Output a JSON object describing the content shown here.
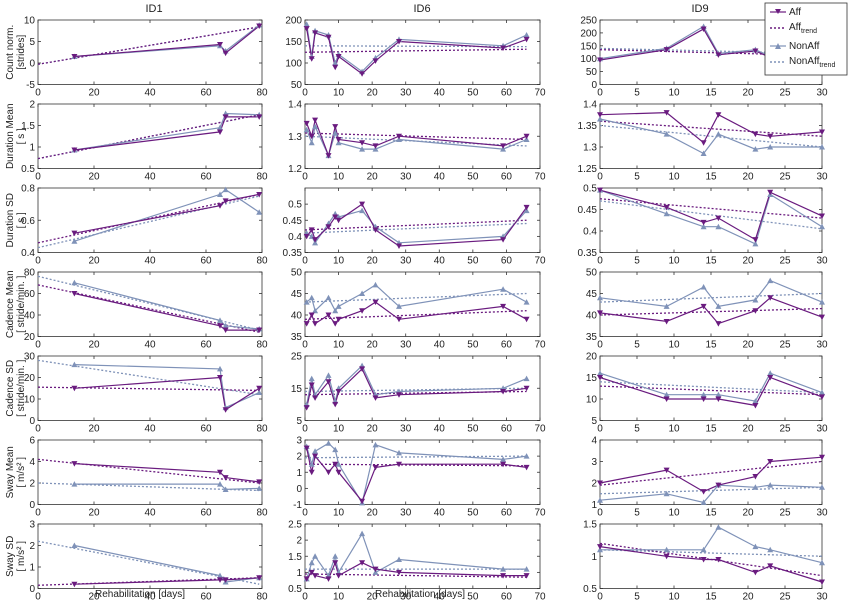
{
  "colors": {
    "aff": "#6a1b7f",
    "nonaff": "#7f92b8",
    "axis": "#333333",
    "box": "#ffffff"
  },
  "legend": {
    "aff": "Aff",
    "aff_trend_base": "Aff",
    "aff_trend_sub": "trend",
    "nonaff": "NonAff",
    "nonaff_trend_base": "NonAff",
    "nonaff_trend_sub": "trend"
  },
  "column_titles": [
    "ID1",
    "ID6",
    "ID9"
  ],
  "xlabel": "Rehabilitation [days]",
  "chart_data": {
    "type": "line",
    "columns": [
      {
        "id": "ID1",
        "xlim": [
          0,
          80
        ],
        "xticks": [
          0,
          20,
          40,
          60,
          80
        ],
        "x": [
          13,
          65,
          67,
          79
        ]
      },
      {
        "id": "ID6",
        "xlim": [
          0,
          70
        ],
        "xticks": [
          0,
          10,
          20,
          30,
          40,
          50,
          60,
          70
        ],
        "x": [
          0.5,
          2,
          3,
          7,
          9,
          10,
          17,
          21,
          28,
          59,
          66
        ]
      },
      {
        "id": "ID9",
        "xlim": [
          0,
          30
        ],
        "xticks": [
          0,
          5,
          10,
          15,
          20,
          25,
          30
        ],
        "x": [
          0,
          9,
          14,
          16,
          21,
          23,
          30
        ]
      }
    ],
    "rows": [
      {
        "ylabel1": "Count norm.",
        "ylabel2": "[strides]",
        "cells": [
          {
            "ylim": [
              -5,
              10
            ],
            "yticks": [
              -5,
              0,
              5,
              10
            ],
            "aff": [
              1.5,
              4.3,
              2.3,
              8.6
            ],
            "nonaff": [
              1.5,
              4.0,
              2.8,
              8.8
            ],
            "aff_trend": [
              -0.3,
              8.4
            ],
            "nonaff_trend": [
              -0.3,
              8.4
            ]
          },
          {
            "ylim": [
              50,
              200
            ],
            "yticks": [
              50,
              100,
              150,
              200
            ],
            "aff": [
              180,
              110,
              170,
              160,
              90,
              115,
              75,
              105,
              150,
              135,
              155
            ],
            "nonaff": [
              190,
              115,
              175,
              165,
              100,
              120,
              80,
              112,
              155,
              140,
              165
            ],
            "aff_trend": [
              125,
              132
            ],
            "nonaff_trend": [
              140,
              138
            ]
          },
          {
            "ylim": [
              0,
              250
            ],
            "yticks": [
              0,
              50,
              100,
              150,
              200,
              250
            ],
            "aff": [
              95,
              135,
              215,
              115,
              130,
              105,
              85
            ],
            "nonaff": [
              100,
              140,
              225,
              120,
              135,
              110,
              95
            ],
            "aff_trend": [
              135,
              112
            ],
            "nonaff_trend": [
              140,
              120
            ]
          }
        ]
      },
      {
        "ylabel1": "Duration Mean",
        "ylabel2": "[ s ]",
        "cells": [
          {
            "ylim": [
              0.5,
              2
            ],
            "yticks": [
              0.5,
              1,
              1.5,
              2
            ],
            "aff": [
              0.93,
              1.35,
              1.7,
              1.7
            ],
            "nonaff": [
              0.93,
              1.45,
              1.78,
              1.75
            ],
            "aff_trend": [
              0.73,
              1.75
            ],
            "nonaff_trend": [
              0.73,
              1.75
            ]
          },
          {
            "ylim": [
              1.2,
              1.4
            ],
            "yticks": [
              1.2,
              1.3,
              1.4
            ],
            "aff": [
              1.34,
              1.3,
              1.35,
              1.24,
              1.33,
              1.29,
              1.28,
              1.27,
              1.3,
              1.27,
              1.3
            ],
            "nonaff": [
              1.32,
              1.28,
              1.33,
              1.24,
              1.31,
              1.28,
              1.26,
              1.26,
              1.29,
              1.26,
              1.29
            ],
            "aff_trend": [
              1.31,
              1.29
            ],
            "nonaff_trend": [
              1.3,
              1.27
            ]
          },
          {
            "ylim": [
              1.25,
              1.4
            ],
            "yticks": [
              1.25,
              1.3,
              1.35,
              1.4
            ],
            "aff": [
              1.375,
              1.38,
              1.31,
              1.375,
              1.33,
              1.325,
              1.335
            ],
            "nonaff": [
              1.365,
              1.33,
              1.285,
              1.33,
              1.295,
              1.3,
              1.3
            ],
            "aff_trend": [
              1.36,
              1.325
            ],
            "nonaff_trend": [
              1.35,
              1.3
            ]
          }
        ]
      },
      {
        "ylabel1": "Duration SD",
        "ylabel2": "[ s ]",
        "cells": [
          {
            "ylim": [
              0.4,
              0.8
            ],
            "yticks": [
              0.4,
              0.6,
              0.8
            ],
            "aff": [
              0.52,
              0.69,
              0.72,
              0.76
            ],
            "nonaff": [
              0.47,
              0.76,
              0.79,
              0.65
            ],
            "aff_trend": [
              0.46,
              0.76
            ],
            "nonaff_trend": [
              0.43,
              0.75
            ]
          },
          {
            "ylim": [
              0.35,
              0.55
            ],
            "yticks": [
              0.35,
              0.4,
              0.45,
              0.5
            ],
            "aff": [
              0.4,
              0.42,
              0.39,
              0.43,
              0.46,
              0.45,
              0.5,
              0.42,
              0.37,
              0.39,
              0.49
            ],
            "nonaff": [
              0.41,
              0.4,
              0.38,
              0.44,
              0.47,
              0.46,
              0.48,
              0.43,
              0.38,
              0.4,
              0.48
            ],
            "aff_trend": [
              0.42,
              0.45
            ],
            "nonaff_trend": [
              0.41,
              0.44
            ]
          },
          {
            "ylim": [
              0.35,
              0.5
            ],
            "yticks": [
              0.35,
              0.4,
              0.45,
              0.5
            ],
            "aff": [
              0.495,
              0.455,
              0.42,
              0.43,
              0.38,
              0.49,
              0.435
            ],
            "nonaff": [
              0.495,
              0.44,
              0.41,
              0.41,
              0.37,
              0.485,
              0.41
            ],
            "aff_trend": [
              0.475,
              0.43
            ],
            "nonaff_trend": [
              0.47,
              0.405
            ]
          }
        ]
      },
      {
        "ylabel1": "Cadence Mean",
        "ylabel2": "[ stride/min. ]",
        "cells": [
          {
            "ylim": [
              20,
              80
            ],
            "yticks": [
              20,
              40,
              60,
              80
            ],
            "aff": [
              60,
              30,
              26,
              26
            ],
            "nonaff": [
              70,
              35,
              30,
              27
            ],
            "aff_trend": [
              68,
              24
            ],
            "nonaff_trend": [
              76,
              26
            ]
          },
          {
            "ylim": [
              35,
              50
            ],
            "yticks": [
              35,
              40,
              45,
              50
            ],
            "aff": [
              38,
              40,
              38,
              40,
              38,
              39,
              41,
              43,
              39,
              42,
              39
            ],
            "nonaff": [
              43,
              44,
              41,
              44,
              41,
              42,
              45,
              47,
              42,
              46,
              43
            ],
            "aff_trend": [
              39,
              41
            ],
            "nonaff_trend": [
              43,
              45
            ]
          },
          {
            "ylim": [
              35,
              50
            ],
            "yticks": [
              35,
              40,
              45,
              50
            ],
            "aff": [
              40.5,
              38.5,
              42,
              38,
              41,
              44,
              39.5
            ],
            "nonaff": [
              44,
              42,
              46.5,
              42,
              43.5,
              48,
              43
            ],
            "aff_trend": [
              40,
              41.5
            ],
            "nonaff_trend": [
              43,
              45
            ]
          }
        ]
      },
      {
        "ylabel1": "Cadence SD",
        "ylabel2": "[ stride/min. ]",
        "cells": [
          {
            "ylim": [
              0,
              30
            ],
            "yticks": [
              0,
              10,
              20,
              30
            ],
            "aff": [
              15,
              20,
              5,
              15
            ],
            "nonaff": [
              26,
              24,
              6,
              13
            ],
            "aff_trend": [
              15.5,
              14
            ],
            "nonaff_trend": [
              28,
              12
            ]
          },
          {
            "ylim": [
              5,
              25
            ],
            "yticks": [
              5,
              15,
              25
            ],
            "aff": [
              9,
              16,
              12,
              17,
              10,
              14,
              21,
              12,
              13,
              14,
              15
            ],
            "nonaff": [
              10,
              18,
              13,
              19,
              11,
              15,
              22,
              13,
              14,
              15,
              18
            ],
            "aff_trend": [
              13,
              14
            ],
            "nonaff_trend": [
              14,
              15
            ]
          },
          {
            "ylim": [
              5,
              20
            ],
            "yticks": [
              5,
              10,
              15,
              20
            ],
            "aff": [
              15,
              10,
              10,
              10,
              8.5,
              15,
              10.5
            ],
            "nonaff": [
              16,
              11,
              11,
              11,
              9.5,
              16,
              11.5
            ],
            "aff_trend": [
              13,
              11
            ],
            "nonaff_trend": [
              14,
              11.5
            ]
          }
        ]
      },
      {
        "ylabel1": "Sway Mean",
        "ylabel2": "[ m/s² ]",
        "cells": [
          {
            "ylim": [
              0,
              6
            ],
            "yticks": [
              0,
              2,
              4,
              6
            ],
            "aff": [
              3.8,
              3.0,
              2.5,
              2.1
            ],
            "nonaff": [
              1.9,
              1.9,
              1.4,
              1.5
            ],
            "aff_trend": [
              4.2,
              2.0
            ],
            "nonaff_trend": [
              2.0,
              1.3
            ]
          },
          {
            "ylim": [
              -1,
              3
            ],
            "yticks": [
              -1,
              0,
              1,
              2,
              3
            ],
            "aff": [
              2.5,
              1.0,
              2.0,
              1.0,
              1.5,
              1.0,
              -0.8,
              1.3,
              1.5,
              1.5,
              1.3
            ],
            "nonaff": [
              2.6,
              1.5,
              2.3,
              2.8,
              2.4,
              1.5,
              -0.9,
              2.7,
              2.2,
              1.8,
              2.0
            ],
            "aff_trend": [
              1.5,
              1.4
            ],
            "nonaff_trend": [
              1.9,
              2.0
            ]
          },
          {
            "ylim": [
              1,
              4
            ],
            "yticks": [
              1,
              2,
              3,
              4
            ],
            "aff": [
              2.0,
              2.6,
              1.6,
              1.9,
              2.3,
              3.0,
              3.2
            ],
            "nonaff": [
              1.2,
              1.5,
              1.1,
              1.9,
              1.8,
              1.9,
              1.8
            ],
            "aff_trend": [
              1.9,
              3.0
            ],
            "nonaff_trend": [
              1.5,
              1.8
            ]
          }
        ]
      },
      {
        "ylabel1": "Sway SD",
        "ylabel2": "[ m/s² ]",
        "cells": [
          {
            "ylim": [
              0,
              3
            ],
            "yticks": [
              0,
              1,
              2,
              3
            ],
            "aff": [
              0.2,
              0.4,
              0.4,
              0.5
            ],
            "nonaff": [
              2.0,
              0.6,
              0.3,
              0.5
            ],
            "aff_trend": [
              0.15,
              0.5
            ],
            "nonaff_trend": [
              2.2,
              0.2
            ]
          },
          {
            "ylim": [
              0.5,
              2.5
            ],
            "yticks": [
              0.5,
              1,
              1.5,
              2,
              2.5
            ],
            "aff": [
              0.8,
              1.0,
              0.9,
              0.8,
              1.3,
              0.9,
              1.3,
              1.1,
              1.0,
              0.9,
              0.9
            ],
            "nonaff": [
              0.8,
              1.3,
              1.5,
              0.9,
              1.5,
              1.0,
              2.2,
              1.0,
              1.4,
              1.1,
              1.1
            ],
            "aff_trend": [
              0.95,
              0.85
            ],
            "nonaff_trend": [
              1.1,
              1.1
            ]
          },
          {
            "ylim": [
              0.5,
              1.5
            ],
            "yticks": [
              0.5,
              1,
              1.5
            ],
            "aff": [
              1.15,
              1.0,
              0.95,
              0.95,
              0.75,
              0.85,
              0.6
            ],
            "nonaff": [
              1.1,
              1.1,
              1.1,
              1.45,
              1.15,
              1.1,
              0.9
            ],
            "aff_trend": [
              1.2,
              0.7
            ],
            "nonaff_trend": [
              1.1,
              1.0
            ]
          }
        ]
      }
    ]
  }
}
